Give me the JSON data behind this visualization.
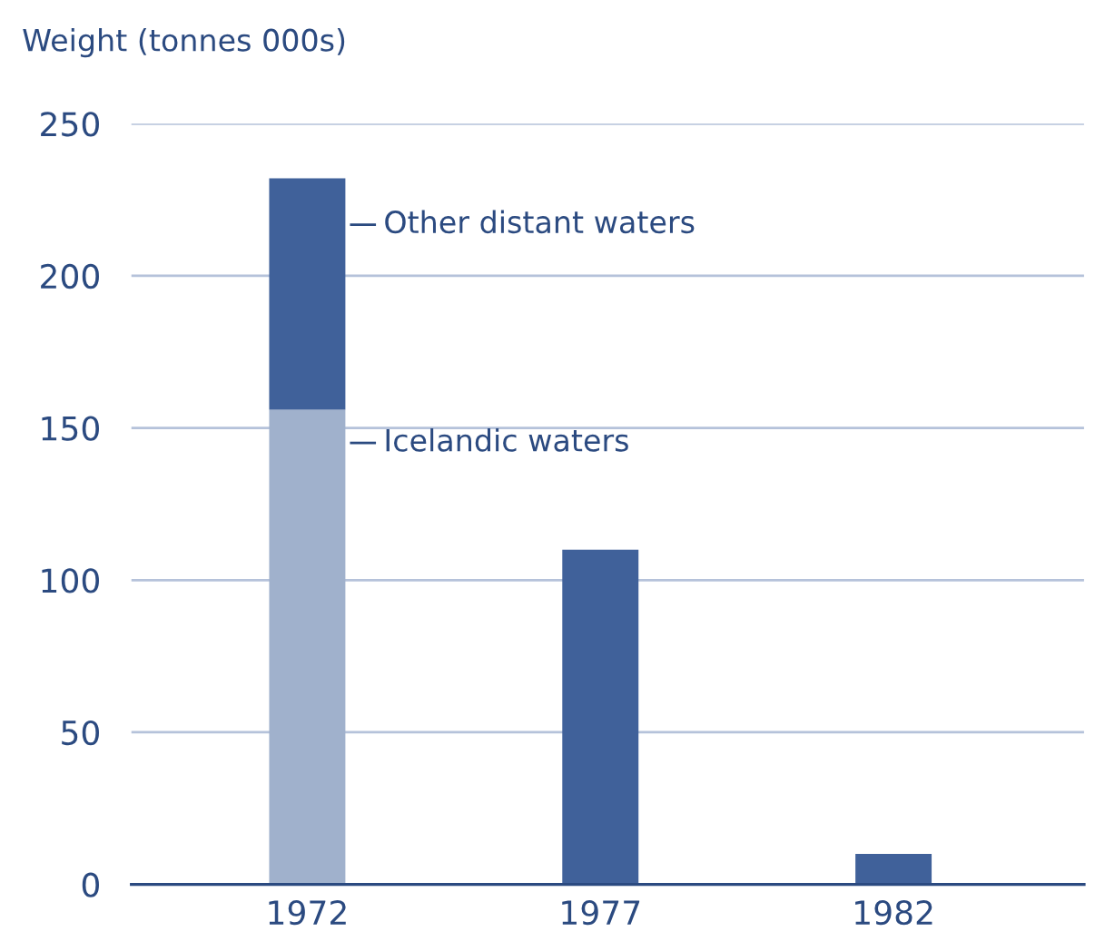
{
  "chart_data": {
    "type": "bar",
    "ylabel": "Weight (tonnes 000s)",
    "categories": [
      "1972",
      "1977",
      "1982"
    ],
    "stacked": true,
    "series": [
      {
        "name": "Icelandic waters",
        "color": "#a0b1cc",
        "values": [
          156,
          null,
          null
        ]
      },
      {
        "name": "Other distant waters",
        "color": "#40619a",
        "values": [
          76,
          110,
          10
        ]
      }
    ],
    "ylim": [
      0,
      250
    ],
    "yticks": [
      0,
      50,
      100,
      150,
      200,
      250
    ],
    "grid": "y",
    "legend": false
  }
}
